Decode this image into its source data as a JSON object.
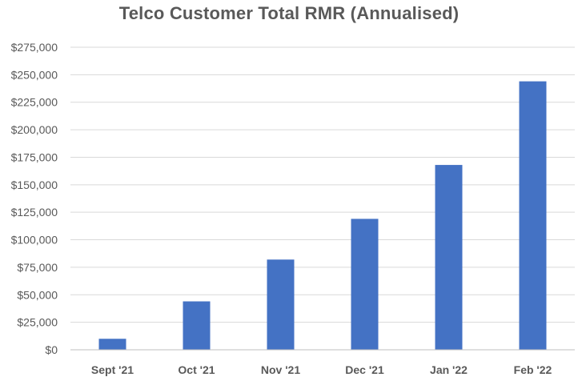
{
  "chart_data": {
    "type": "bar",
    "title": "Telco Customer Total RMR (Annualised)",
    "categories": [
      "Sept '21",
      "Oct '21",
      "Nov '21",
      "Dec '21",
      "Jan '22",
      "Feb '22"
    ],
    "values": [
      10000,
      44000,
      82000,
      119000,
      168000,
      244000
    ],
    "y_ticks": [
      "$0",
      "$25,000",
      "$50,000",
      "$75,000",
      "$100,000",
      "$125,000",
      "$150,000",
      "$175,000",
      "$200,000",
      "$225,000",
      "$250,000",
      "$275,000"
    ],
    "ylim": [
      0,
      275000
    ],
    "tick_step": 25000,
    "xlabel": "",
    "ylabel": "",
    "grid": true,
    "legend": "none",
    "bar_color": "#4472C4",
    "grid_color": "#D9D9D9",
    "text_color": "#595959"
  }
}
